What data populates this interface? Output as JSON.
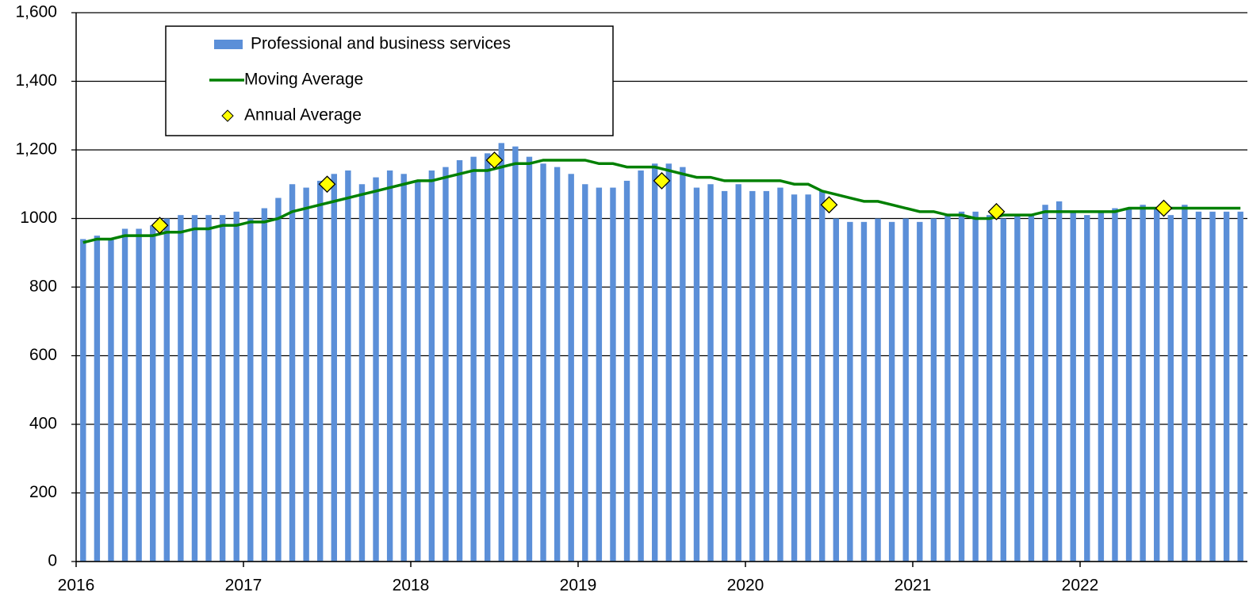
{
  "chart_data": {
    "type": "bar",
    "xlim": [
      2016,
      2023
    ],
    "xticks": [
      2016,
      2017,
      2018,
      2019,
      2020,
      2021,
      2022
    ],
    "ylim": [
      0,
      1600
    ],
    "yticks": [
      0,
      200,
      400,
      600,
      800,
      1000,
      {
        "value": 1200,
        "label": "1,200"
      },
      {
        "value": 1400,
        "label": "1,400"
      },
      {
        "value": 1600,
        "label": "1,600"
      }
    ],
    "grid": true,
    "series": [
      {
        "name": "Professional and business services",
        "type": "bar",
        "color": "#5b8fd8",
        "values": [
          940,
          950,
          940,
          970,
          970,
          980,
          1000,
          1010,
          1010,
          1010,
          1010,
          1020,
          1000,
          1030,
          1060,
          1100,
          1090,
          1110,
          1130,
          1140,
          1100,
          1120,
          1140,
          1130,
          1110,
          1140,
          1150,
          1170,
          1180,
          1190,
          1220,
          1210,
          1180,
          1160,
          1150,
          1130,
          1100,
          1090,
          1090,
          1110,
          1140,
          1160,
          1160,
          1150,
          1090,
          1100,
          1080,
          1100,
          1080,
          1080,
          1090,
          1070,
          1070,
          1080,
          1000,
          990,
          990,
          1000,
          990,
          1000,
          990,
          1000,
          1010,
          1020,
          1020,
          1010,
          1000,
          1010,
          1010,
          1040,
          1050,
          1020,
          1010,
          1020,
          1030,
          1030,
          1040,
          1030,
          1010,
          1040,
          1020,
          1020,
          1020,
          1020
        ]
      },
      {
        "name": "Moving Average",
        "type": "line",
        "color": "#008000",
        "values": [
          930,
          940,
          940,
          950,
          950,
          950,
          960,
          960,
          970,
          970,
          980,
          980,
          990,
          990,
          1000,
          1020,
          1030,
          1040,
          1050,
          1060,
          1070,
          1080,
          1090,
          1100,
          1110,
          1110,
          1120,
          1130,
          1140,
          1140,
          1150,
          1160,
          1160,
          1170,
          1170,
          1170,
          1170,
          1160,
          1160,
          1150,
          1150,
          1150,
          1140,
          1130,
          1120,
          1120,
          1110,
          1110,
          1110,
          1110,
          1110,
          1100,
          1100,
          1080,
          1070,
          1060,
          1050,
          1050,
          1040,
          1030,
          1020,
          1020,
          1010,
          1010,
          1000,
          1000,
          1010,
          1010,
          1010,
          1020,
          1020,
          1020,
          1020,
          1020,
          1020,
          1030,
          1030,
          1030,
          1030,
          1030,
          1030,
          1030,
          1030,
          1030
        ]
      },
      {
        "name": "Annual Average",
        "type": "marker",
        "color": "#ffff00",
        "values": [
          980,
          1100,
          1170,
          1110,
          1040,
          1020,
          1030
        ]
      }
    ]
  }
}
